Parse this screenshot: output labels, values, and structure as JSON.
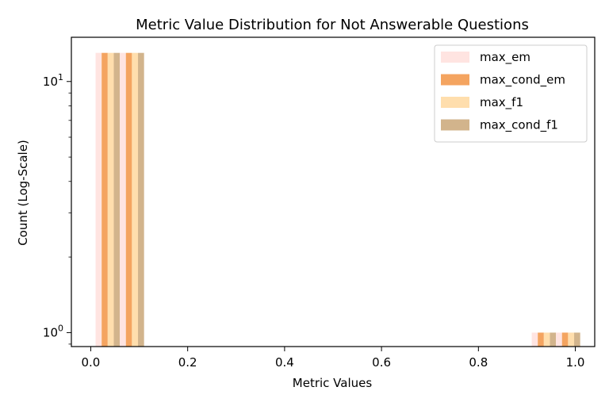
{
  "chart_data": {
    "type": "bar",
    "title": "Metric Value Distribution for Not Answerable Questions",
    "xlabel": "Metric Values",
    "ylabel": "Count (Log-Scale)",
    "yscale": "log",
    "xlim": [
      -0.04,
      1.04
    ],
    "ylim": [
      0.88,
      15
    ],
    "xticks": [
      {
        "value": 0.0,
        "label": "0.0"
      },
      {
        "value": 0.2,
        "label": "0.2"
      },
      {
        "value": 0.4,
        "label": "0.4"
      },
      {
        "value": 0.6,
        "label": "0.6"
      },
      {
        "value": 0.8,
        "label": "0.8"
      },
      {
        "value": 1.0,
        "label": "1.0"
      }
    ],
    "yticks": [
      {
        "value": 1,
        "base": "10",
        "exp": "0"
      },
      {
        "value": 10,
        "base": "10",
        "exp": "1"
      }
    ],
    "bins": [
      0.0,
      1.0
    ],
    "series": [
      {
        "name": "max_em",
        "color": "#FFE4E1",
        "values": [
          13,
          1
        ]
      },
      {
        "name": "max_cond_em",
        "color": "#F4A460",
        "values": [
          13,
          1
        ]
      },
      {
        "name": "max_f1",
        "color": "#FFDEAD",
        "values": [
          13,
          1
        ]
      },
      {
        "name": "max_cond_f1",
        "color": "#D2B48C",
        "values": [
          13,
          1
        ]
      }
    ],
    "legend": "top-right",
    "grid": false
  }
}
